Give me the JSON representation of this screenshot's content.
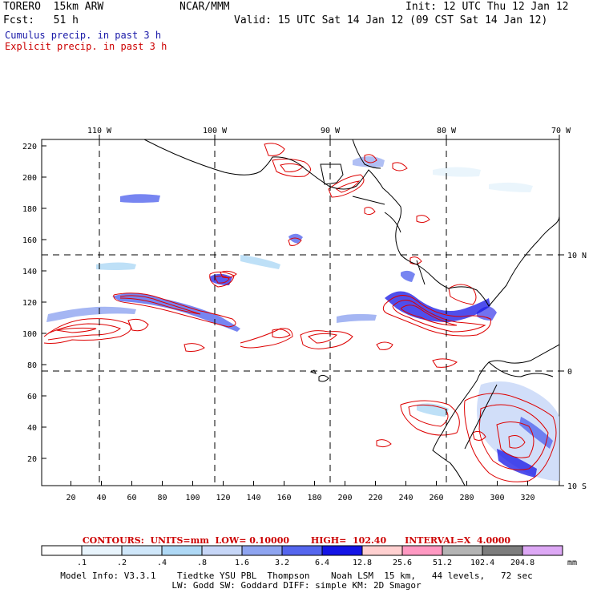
{
  "header": {
    "model_name": "TORERO",
    "resolution": "15km ARW",
    "org": "NCAR/MMM",
    "init": "Init: 12 UTC Thu 12 Jan 12",
    "fcst_label": "Fcst:",
    "fcst_value": "51 h",
    "valid": "Valid: 15 UTC Sat 14 Jan 12 (09 CST Sat 14 Jan 12)",
    "cumulus_label": "Cumulus precip. in past 3 h",
    "explicit_label": "Explicit precip. in past 3 h"
  },
  "colors": {
    "cumulus": "#1a1aa8",
    "explicit": "#cc0000",
    "contour_red": "#dd0000"
  },
  "map": {
    "top_lon_labels": [
      "110 W",
      "100 W",
      "90 W",
      "80 W",
      "70 W"
    ],
    "right_lat_labels": [
      "10 N",
      "0",
      "10 S"
    ],
    "left_y_ticks": [
      "220",
      "200",
      "180",
      "160",
      "140",
      "120",
      "100",
      "80",
      "60",
      "40",
      "20"
    ],
    "bottom_x_ticks": [
      "20",
      "40",
      "60",
      "80",
      "100",
      "120",
      "140",
      "160",
      "180",
      "200",
      "220",
      "240",
      "260",
      "280",
      "300",
      "320"
    ]
  },
  "colorbar": {
    "units": "mm",
    "levels": [
      ".1",
      ".2",
      ".4",
      ".8",
      "1.6",
      "3.2",
      "6.4",
      "12.8",
      "25.6",
      "51.2",
      "102.4",
      "204.8"
    ],
    "colors": [
      "#ffffff",
      "#e8f4fc",
      "#cfe7fa",
      "#aed8f5",
      "#c6d6f7",
      "#8ea4f0",
      "#5566ee",
      "#1414e6",
      "#ffd0d0",
      "#ff99c2",
      "#b4b4b4",
      "#7d7d7d",
      "#dda8f5"
    ]
  },
  "contours_line": "CONTOURS:  UNITS=mm  LOW= 0.10000       HIGH=  102.40      INTERVAL=X  4.0000",
  "footer": {
    "line1": "Model Info: V3.3.1    Tiedtke YSU PBL  Thompson    Noah LSM  15 km,   44 levels,   72 sec",
    "line2": "LW: Godd SW: Goddard DIFF: simple KM: 2D Smagor"
  }
}
